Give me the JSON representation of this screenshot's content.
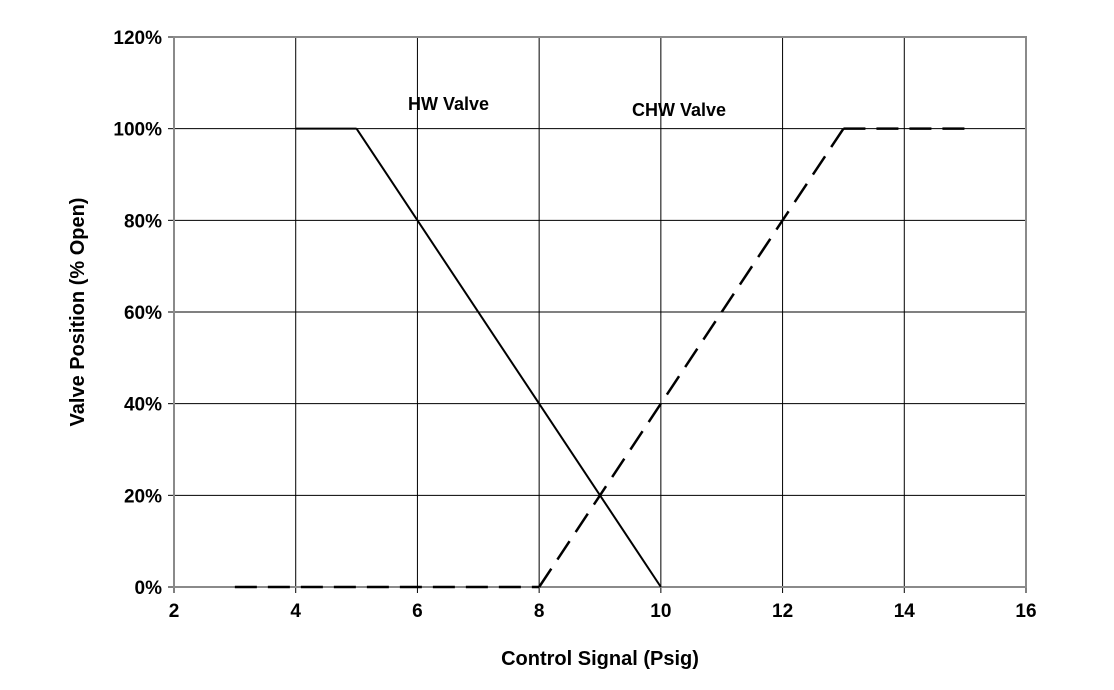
{
  "chart_data": {
    "type": "line",
    "title": "",
    "xlabel": "Control Signal (Psig)",
    "ylabel": "Valve Position (% Open)",
    "xlim": [
      2,
      16
    ],
    "ylim": [
      0,
      120
    ],
    "x_ticks": [
      "2",
      "4",
      "6",
      "8",
      "10",
      "12",
      "14",
      "16"
    ],
    "y_ticks": [
      "0%",
      "20%",
      "40%",
      "60%",
      "80%",
      "100%",
      "120%"
    ],
    "grid": true,
    "legend": "none",
    "series": [
      {
        "name": "HW Valve",
        "style": "solid",
        "color": "#000000",
        "x": [
          5,
          10
        ],
        "y": [
          100,
          0
        ]
      },
      {
        "name": "CHW Valve",
        "style": "dashed",
        "color": "#000000",
        "x": [
          8,
          13
        ],
        "y": [
          0,
          100
        ]
      }
    ],
    "flat_segments": [
      {
        "series": "HW Valve",
        "style": "solid",
        "x": [
          4,
          5
        ],
        "y": [
          100,
          100
        ]
      },
      {
        "series": "HW Valve",
        "style": "dashed",
        "x": [
          3,
          8
        ],
        "y": [
          0,
          0
        ]
      },
      {
        "series": "CHW Valve",
        "style": "dashed",
        "x": [
          13,
          15
        ],
        "y": [
          100,
          100
        ]
      }
    ]
  }
}
